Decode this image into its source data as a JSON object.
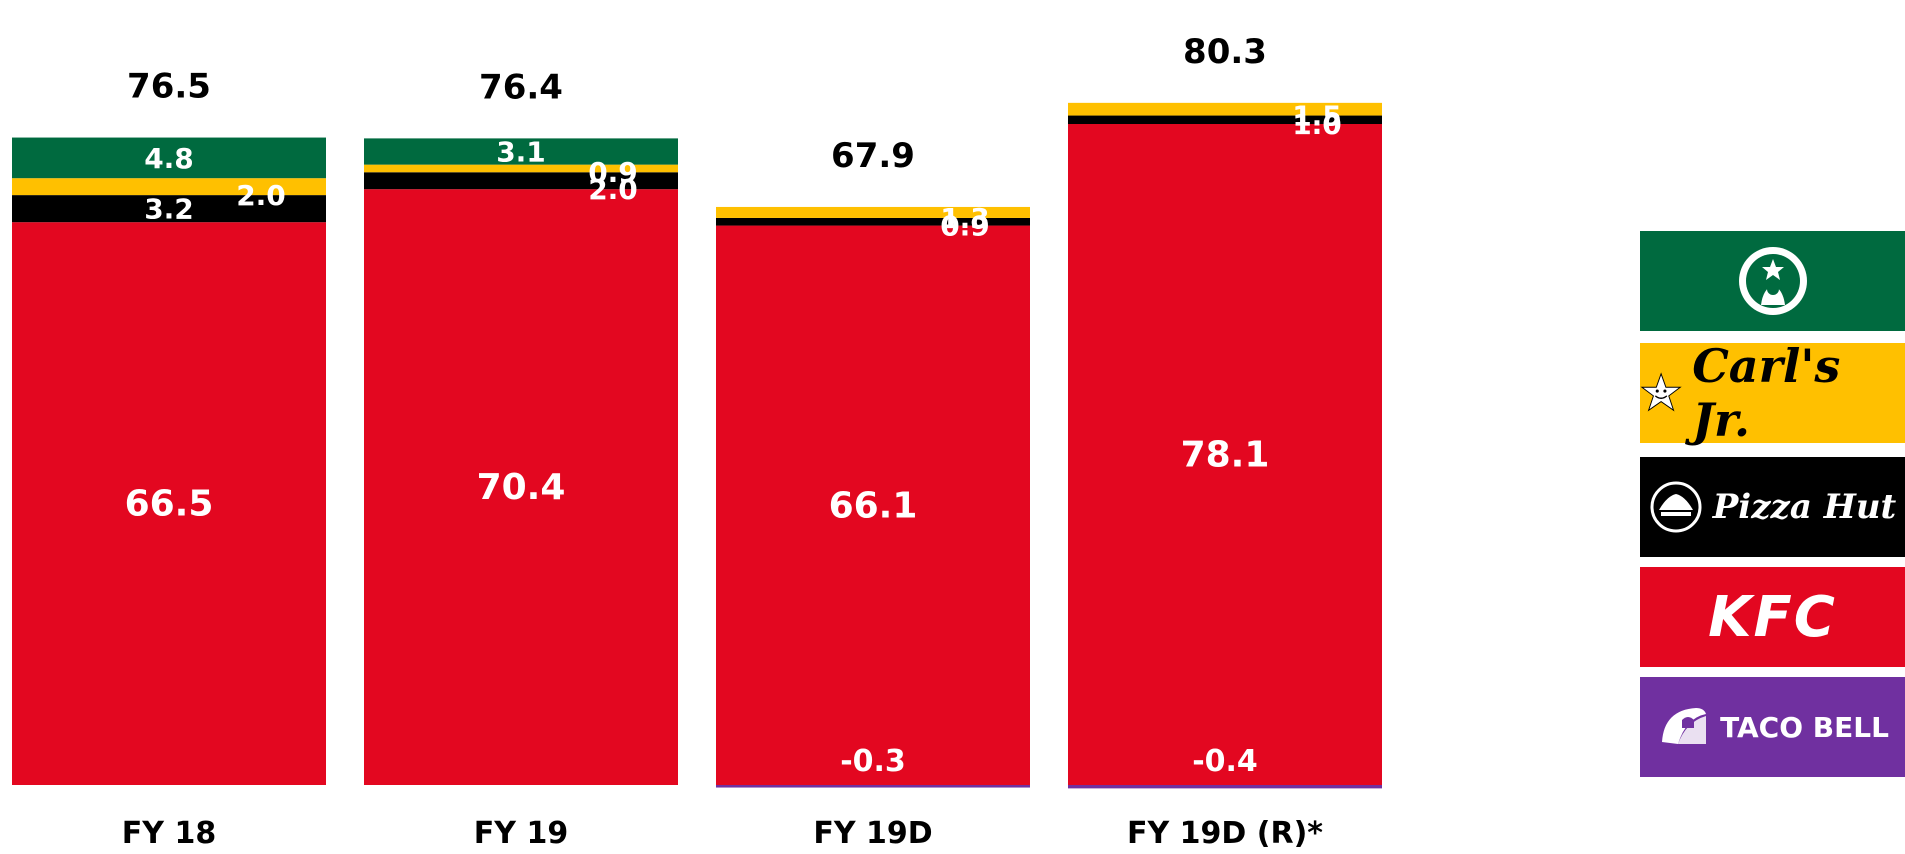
{
  "chart_data": {
    "type": "bar",
    "stacked": true,
    "categories": [
      "FY 18",
      "FY 19",
      "FY 19D",
      "FY 19D (R)*"
    ],
    "totals": [
      "76.5",
      "76.4",
      "67.9",
      "80.3"
    ],
    "series": [
      {
        "brand": "Taco Bell",
        "color": "#7030A0",
        "values": [
          0,
          0,
          -0.3,
          -0.4
        ],
        "labels": [
          "",
          "",
          "-0.3",
          "-0.4"
        ]
      },
      {
        "brand": "KFC",
        "color": "#E30720",
        "values": [
          66.5,
          70.4,
          66.1,
          78.1
        ],
        "labels": [
          "66.5",
          "70.4",
          "66.1",
          "78.1"
        ]
      },
      {
        "brand": "Pizza Hut",
        "color": "#000000",
        "values": [
          3.2,
          2.0,
          0.9,
          1.0
        ],
        "labels": [
          "3.2",
          "2.0",
          "0.9",
          "1.0"
        ]
      },
      {
        "brand": "Carl's Jr.",
        "color": "#FFC000",
        "values": [
          2.0,
          0.9,
          1.3,
          1.5
        ],
        "labels": [
          "2.0",
          "0.9",
          "1.3",
          "1.5"
        ]
      },
      {
        "brand": "Starbucks",
        "color": "#006A3F",
        "values": [
          4.8,
          3.1,
          0,
          0
        ],
        "labels": [
          "4.8",
          "3.1",
          "",
          ""
        ]
      }
    ],
    "ylim": [
      -0.5,
      82
    ],
    "legend_position": "right"
  },
  "legend": {
    "carls_text": "Carl's Jr.",
    "pizza_text": "Pizza Hut",
    "kfc_text": "KFC",
    "taco_text": "TACO BELL",
    "colors": {
      "starbucks": "#006A3F",
      "carls": "#FFC000",
      "pizzahut": "#000000",
      "kfc": "#E30720",
      "tacobell": "#7030A0"
    },
    "icons": [
      "starbucks-logo-icon",
      "carls-jr-star-icon",
      "pizza-hut-icon",
      "taco-bell-icon"
    ]
  }
}
